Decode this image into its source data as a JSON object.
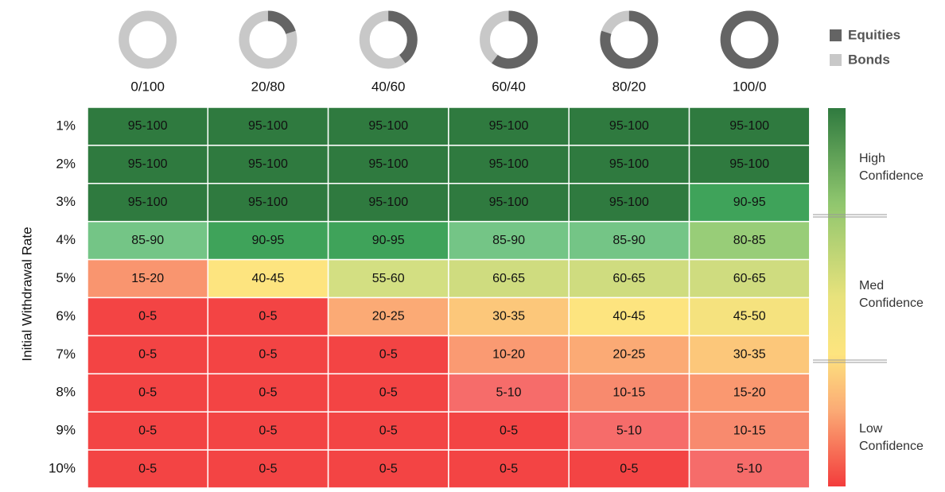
{
  "y_axis_label": "Initial Withdrawal Rate",
  "legend": {
    "equities": {
      "label": "Equities",
      "color": "#646464"
    },
    "bonds": {
      "label": "Bonds",
      "color": "#c8c8c8"
    }
  },
  "donuts": [
    {
      "label": "0/100",
      "equities": 0
    },
    {
      "label": "20/80",
      "equities": 20
    },
    {
      "label": "40/60",
      "equities": 40
    },
    {
      "label": "60/40",
      "equities": 60
    },
    {
      "label": "80/20",
      "equities": 80
    },
    {
      "label": "100/0",
      "equities": 100
    }
  ],
  "confidence_labels": [
    [
      "High",
      "Confidence"
    ],
    [
      "Med",
      "Confidence"
    ],
    [
      "Low",
      "Confidence"
    ]
  ],
  "rows": [
    {
      "label": "1%",
      "cells": [
        "95-100",
        "95-100",
        "95-100",
        "95-100",
        "95-100",
        "95-100"
      ],
      "colors": [
        "#2f7a3f",
        "#2f7a3f",
        "#2f7a3f",
        "#2f7a3f",
        "#2f7a3f",
        "#2f7a3f"
      ]
    },
    {
      "label": "2%",
      "cells": [
        "95-100",
        "95-100",
        "95-100",
        "95-100",
        "95-100",
        "95-100"
      ],
      "colors": [
        "#2f7a3f",
        "#2f7a3f",
        "#2f7a3f",
        "#2f7a3f",
        "#2f7a3f",
        "#2f7a3f"
      ]
    },
    {
      "label": "3%",
      "cells": [
        "95-100",
        "95-100",
        "95-100",
        "95-100",
        "95-100",
        "90-95"
      ],
      "colors": [
        "#2f7a3f",
        "#2f7a3f",
        "#2f7a3f",
        "#2f7a3f",
        "#2f7a3f",
        "#3fa35a"
      ]
    },
    {
      "label": "4%",
      "cells": [
        "85-90",
        "90-95",
        "90-95",
        "85-90",
        "85-90",
        "80-85"
      ],
      "colors": [
        "#74c586",
        "#3fa35a",
        "#3fa35a",
        "#74c586",
        "#74c586",
        "#98cd78"
      ]
    },
    {
      "label": "5%",
      "cells": [
        "15-20",
        "40-45",
        "55-60",
        "60-65",
        "60-65",
        "60-65"
      ],
      "colors": [
        "#f9956f",
        "#fde47f",
        "#d3df82",
        "#cfdc7f",
        "#cfdc7f",
        "#cfdc7f"
      ]
    },
    {
      "label": "6%",
      "cells": [
        "0-5",
        "0-5",
        "20-25",
        "30-35",
        "40-45",
        "45-50"
      ],
      "colors": [
        "#f34444",
        "#f34444",
        "#fbaa75",
        "#fcc77a",
        "#fde47f",
        "#f5e27e"
      ]
    },
    {
      "label": "7%",
      "cells": [
        "0-5",
        "0-5",
        "0-5",
        "10-20",
        "20-25",
        "30-35"
      ],
      "colors": [
        "#f34444",
        "#f34444",
        "#f34444",
        "#fa9a72",
        "#fbaa75",
        "#fcc77a"
      ]
    },
    {
      "label": "8%",
      "cells": [
        "0-5",
        "0-5",
        "0-5",
        "5-10",
        "10-15",
        "15-20"
      ],
      "colors": [
        "#f34444",
        "#f34444",
        "#f34444",
        "#f66c6a",
        "#f88a6e",
        "#fa9870"
      ]
    },
    {
      "label": "9%",
      "cells": [
        "0-5",
        "0-5",
        "0-5",
        "0-5",
        "5-10",
        "10-15"
      ],
      "colors": [
        "#f34444",
        "#f34444",
        "#f34444",
        "#f34444",
        "#f66c6a",
        "#f88a6e"
      ]
    },
    {
      "label": "10%",
      "cells": [
        "0-5",
        "0-5",
        "0-5",
        "0-5",
        "0-5",
        "5-10"
      ],
      "colors": [
        "#f34444",
        "#f34444",
        "#f34444",
        "#f34444",
        "#f34444",
        "#f66c6a"
      ]
    }
  ]
}
